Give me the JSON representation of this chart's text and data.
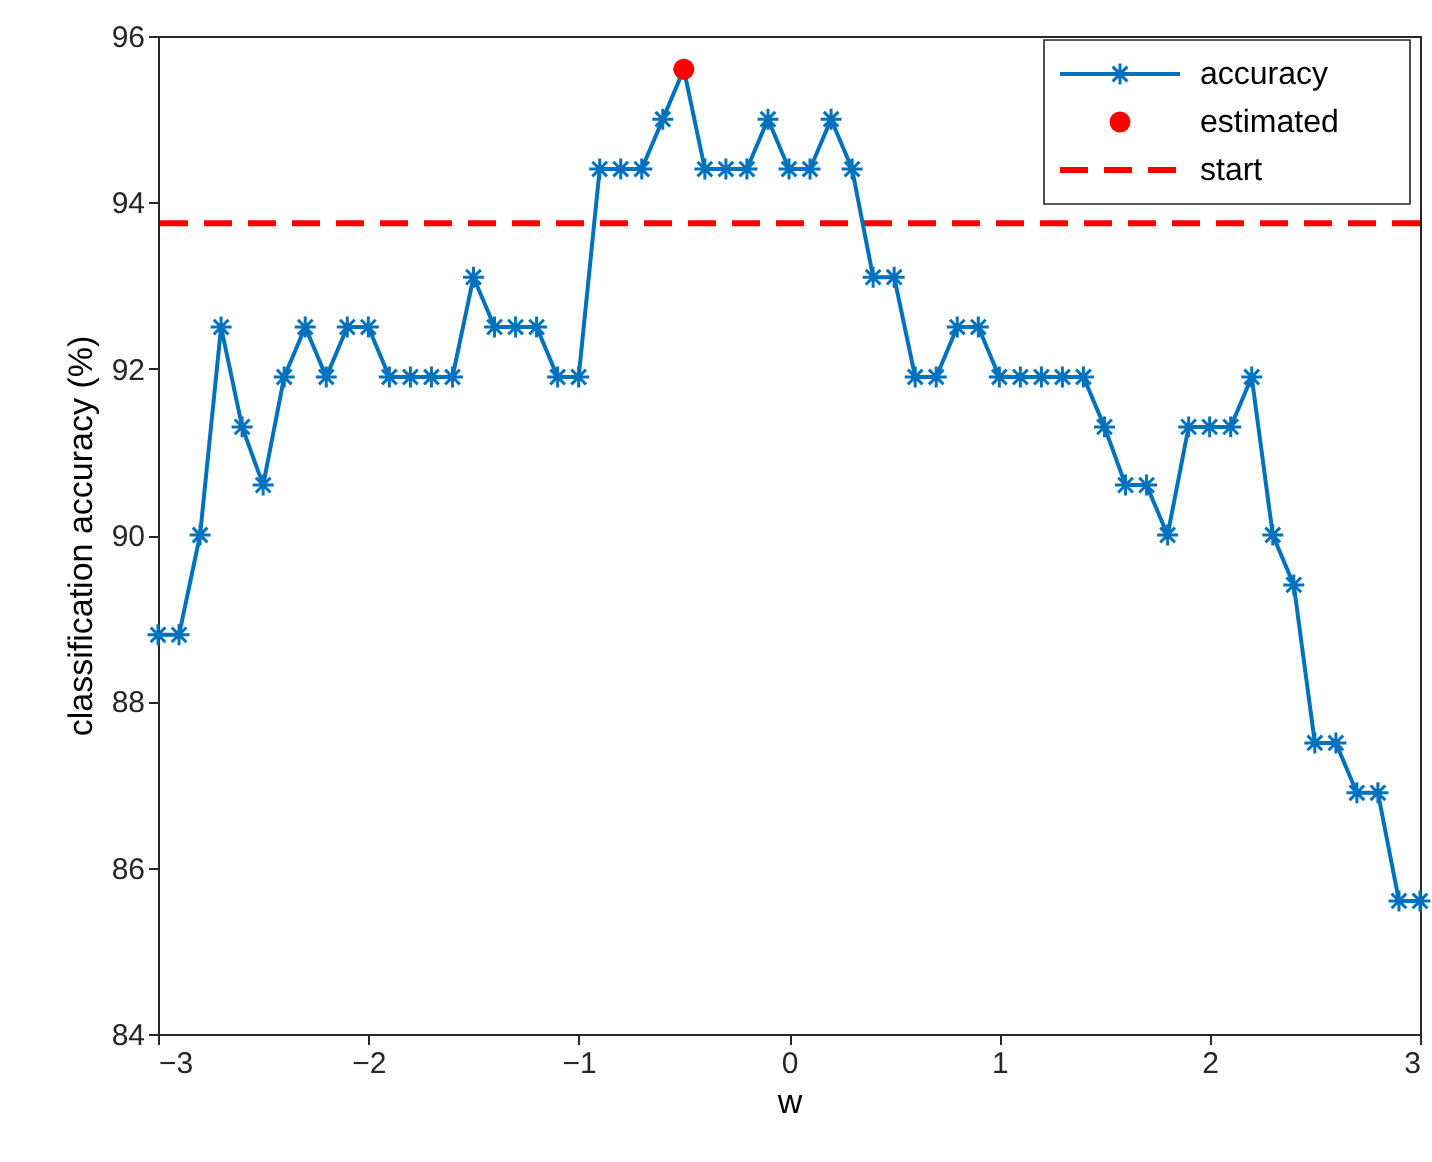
{
  "chart_data": {
    "type": "line",
    "xlabel": "w",
    "ylabel": "classification accuracy (%)",
    "xlim": [
      -3,
      3
    ],
    "ylim": [
      84,
      96
    ],
    "xticks": [
      -3,
      -2,
      -1,
      0,
      1,
      2,
      3
    ],
    "yticks": [
      84,
      86,
      88,
      90,
      92,
      94,
      96
    ],
    "grid": false,
    "legend": "top right",
    "series": [
      {
        "name": "accuracy",
        "color": "#0072bd",
        "marker": "cross",
        "line_style": "solid",
        "x": [
          -3.0,
          -2.9,
          -2.8,
          -2.7,
          -2.6,
          -2.5,
          -2.4,
          -2.3,
          -2.2,
          -2.1,
          -2.0,
          -1.9,
          -1.8,
          -1.7,
          -1.6,
          -1.5,
          -1.4,
          -1.3,
          -1.2,
          -1.1,
          -1.0,
          -0.9,
          -0.8,
          -0.7,
          -0.6,
          -0.5,
          -0.4,
          -0.3,
          -0.2,
          -0.1,
          0.0,
          0.1,
          0.2,
          0.3,
          0.4,
          0.5,
          0.6,
          0.7,
          0.8,
          0.9,
          1.0,
          1.1,
          1.2,
          1.3,
          1.4,
          1.5,
          1.6,
          1.7,
          1.8,
          1.9,
          2.0,
          2.1,
          2.2,
          2.3,
          2.4,
          2.5,
          2.6,
          2.7,
          2.8,
          2.9,
          3.0
        ],
        "values": [
          88.8,
          88.8,
          90,
          92.5,
          91.3,
          90.6,
          91.9,
          92.5,
          91.9,
          92.5,
          92.5,
          91.9,
          91.9,
          91.9,
          91.9,
          93.1,
          92.5,
          92.5,
          92.5,
          91.9,
          91.9,
          94.4,
          94.4,
          94.4,
          95,
          95.6,
          94.4,
          94.4,
          94.4,
          95,
          94.4,
          94.4,
          95,
          94.4,
          93.1,
          93.1,
          91.9,
          91.9,
          92.5,
          92.5,
          91.9,
          91.9,
          91.9,
          91.9,
          91.9,
          91.3,
          90.6,
          90.6,
          90,
          91.3,
          91.3,
          91.3,
          91.9,
          90,
          89.4,
          87.5,
          87.5,
          86.9,
          86.9,
          85.6,
          85.6
        ]
      },
      {
        "name": "estimated",
        "type": "scatter",
        "color": "#ff0000",
        "marker": "circle",
        "x": [
          -0.5
        ],
        "values": [
          95.6
        ]
      }
    ],
    "ref_lines": [
      {
        "axis": "y",
        "value": 93.75,
        "label": "start",
        "color": "#ff0000",
        "line_style": "dashed"
      }
    ]
  }
}
